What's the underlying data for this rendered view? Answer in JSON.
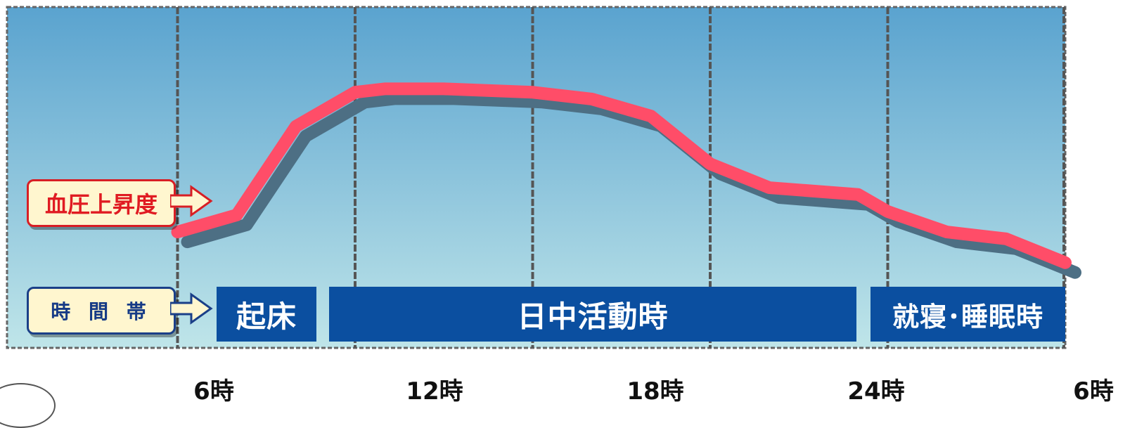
{
  "chart_data": {
    "type": "line",
    "x_label_ticks": [
      "6時",
      "12時",
      "18時",
      "24時",
      "6時"
    ],
    "x": [
      0,
      2,
      4,
      6,
      7,
      9,
      12,
      14,
      16,
      18,
      20,
      23,
      24,
      26,
      28,
      30
    ],
    "y": [
      34,
      39,
      65,
      75,
      76,
      76,
      75,
      73,
      68,
      54,
      47,
      45,
      40,
      34,
      32,
      25
    ],
    "xlim": [
      -6,
      30
    ],
    "ylim": [
      0,
      100
    ],
    "grid": "vertical",
    "series_color": "#ff4d68",
    "background_top": "#5aa3cf",
    "background_bottom": "#bfe5e9"
  },
  "labels": {
    "blood_pressure": "血圧上昇度",
    "time_zone": "時 間 帯"
  },
  "bands": {
    "wake": "起床",
    "day": "日中活動時",
    "sleep": "就寝･睡眠時"
  },
  "colors": {
    "band": "#0b4fa0",
    "callout_red": "#d81e24",
    "callout_blue": "#1a3f88"
  }
}
